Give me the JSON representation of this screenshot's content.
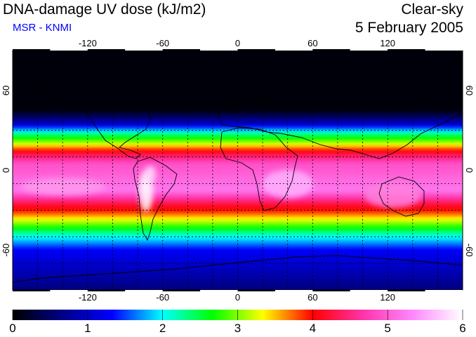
{
  "header": {
    "title": "DNA-damage UV dose (kJ/m2)",
    "source": "MSR - KNMI",
    "condition": "Clear-sky",
    "date": "5 February 2005"
  },
  "map": {
    "projection": "equirectangular",
    "lon_range": [
      -180,
      180
    ],
    "lat_range": [
      -90,
      90
    ],
    "lon_ticks": [
      "-120",
      "-60",
      "0",
      "60",
      "120"
    ],
    "lat_ticks": [
      "60",
      "0",
      "-60"
    ],
    "grid_lon_step": 20,
    "grid_lat_step": 20
  },
  "colorbar": {
    "min": 0,
    "max": 6,
    "tick_labels": [
      "0",
      "1",
      "2",
      "3",
      "4",
      "5",
      "6"
    ],
    "colors": [
      "#000000",
      "#000088",
      "#0000ff",
      "#00ffff",
      "#00ff00",
      "#ffff00",
      "#ff0000",
      "#ff33aa",
      "#ff88ff",
      "#ffffff"
    ]
  },
  "legend_colors": {
    "title_color": "#000000",
    "source_color": "#0000ff",
    "coastline_color": "#000000"
  }
}
